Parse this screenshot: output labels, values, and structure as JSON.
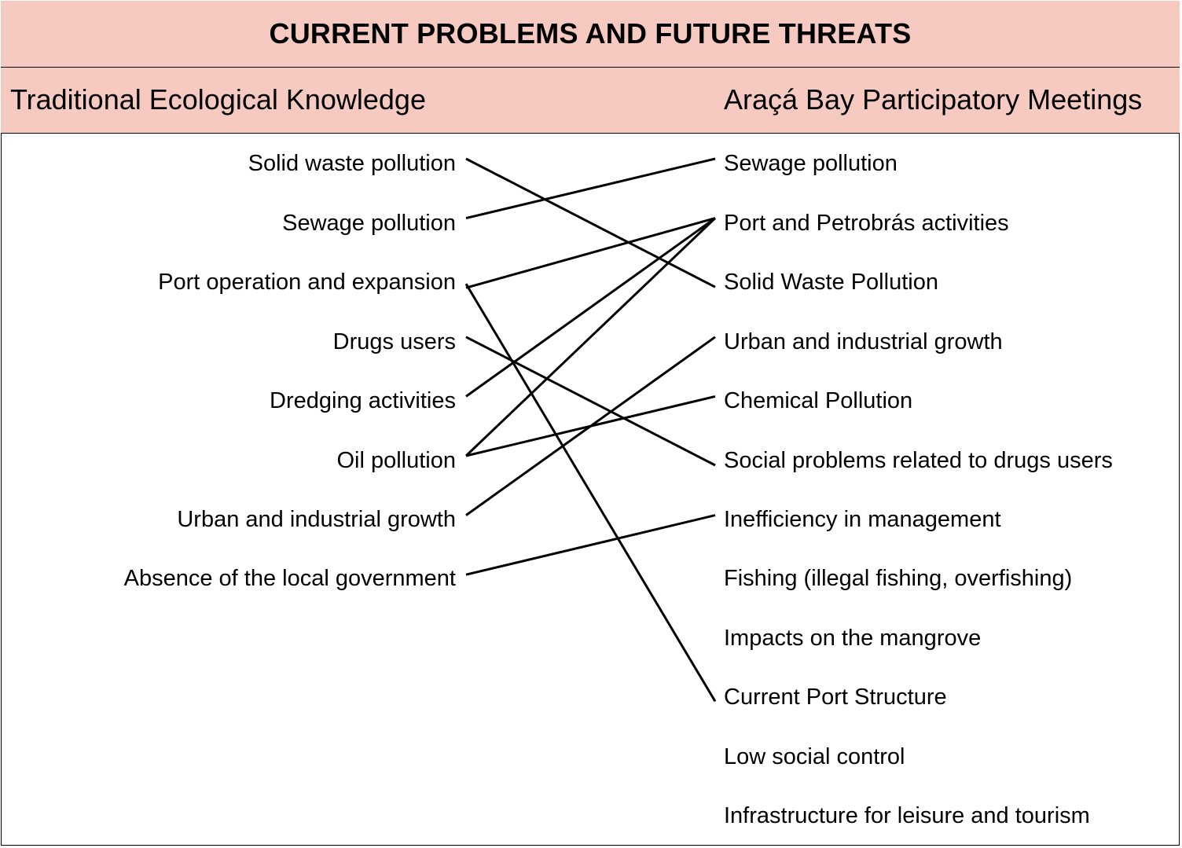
{
  "title": "CURRENT PROBLEMS AND FUTURE THREATS",
  "left_header": "Traditional Ecological Knowledge",
  "right_header": "Araçá Bay Participatory Meetings",
  "left_items": [
    "Solid waste pollution",
    "Sewage pollution",
    "Port operation and expansion",
    "Drugs users",
    "Dredging activities",
    "Oil pollution",
    "Urban and industrial growth",
    "Absence of the local government"
  ],
  "right_items": [
    "Sewage pollution",
    "Port and Petrobrás activities",
    "Solid Waste Pollution",
    "Urban and industrial growth",
    "Chemical Pollution",
    "Social problems related to drugs users",
    "Inefficiency in management",
    "Fishing (illegal fishing, overfishing)",
    "Impacts on the mangrove",
    "Current Port Structure",
    "Low social control",
    "Infrastructure for leisure and tourism"
  ],
  "links": [
    {
      "from": 0,
      "to": 2
    },
    {
      "from": 1,
      "to": 0
    },
    {
      "from": 2,
      "to": 1
    },
    {
      "from": 2,
      "to": 9
    },
    {
      "from": 3,
      "to": 5
    },
    {
      "from": 4,
      "to": 1
    },
    {
      "from": 5,
      "to": 1
    },
    {
      "from": 5,
      "to": 4
    },
    {
      "from": 6,
      "to": 3
    },
    {
      "from": 7,
      "to": 6
    }
  ],
  "colors": {
    "header_fill": "#f6cac1",
    "line": "#000000"
  }
}
